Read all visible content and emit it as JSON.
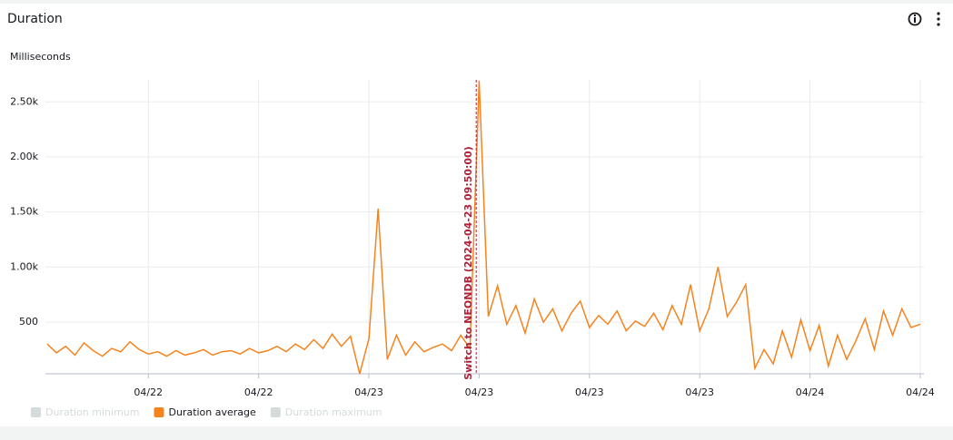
{
  "header": {
    "title": "Duration"
  },
  "chart_data": {
    "type": "line",
    "y_label": "Milliseconds",
    "x": [
      6.5,
      7,
      7.5,
      8,
      8.5,
      9,
      9.5,
      10,
      10.5,
      11,
      11.5,
      12,
      12.5,
      13,
      13.5,
      14,
      14.5,
      15,
      15.5,
      16,
      16.5,
      17,
      17.5,
      18,
      18.5,
      19,
      19.5,
      20,
      20.5,
      21,
      21.5,
      22,
      22.5,
      23,
      23.5,
      24,
      24.5,
      25,
      25.5,
      26,
      26.5,
      27,
      27.5,
      28,
      28.5,
      29,
      29.5,
      30,
      30.5,
      31,
      31.5,
      32,
      32.5,
      33,
      33.5,
      34,
      34.5,
      35,
      35.5,
      36,
      36.5,
      37,
      37.5,
      38,
      38.5,
      39,
      39.5,
      40,
      40.5,
      41,
      41.5,
      42,
      42.5,
      43,
      43.5,
      44,
      44.5,
      45,
      45.5,
      46,
      46.5,
      47,
      47.5,
      48,
      48.5,
      49,
      49.5,
      50,
      50.5,
      51,
      51.5,
      52,
      52.5,
      53,
      53.5,
      54
    ],
    "series": [
      {
        "name": "Duration average",
        "color": "#f5841f",
        "values": [
          300,
          220,
          280,
          200,
          310,
          240,
          190,
          260,
          230,
          320,
          250,
          210,
          230,
          190,
          240,
          200,
          220,
          250,
          200,
          230,
          240,
          210,
          260,
          220,
          240,
          280,
          230,
          300,
          250,
          340,
          260,
          390,
          280,
          370,
          30,
          350,
          1530,
          160,
          380,
          200,
          320,
          230,
          270,
          300,
          240,
          380,
          260,
          2690,
          550,
          830,
          480,
          650,
          400,
          710,
          500,
          620,
          420,
          580,
          690,
          450,
          560,
          480,
          600,
          420,
          510,
          460,
          580,
          430,
          650,
          480,
          840,
          420,
          620,
          1000,
          550,
          680,
          840,
          80,
          250,
          120,
          420,
          180,
          520,
          240,
          470,
          100,
          380,
          160,
          330,
          530,
          250,
          600,
          380,
          620,
          450,
          480
        ]
      }
    ],
    "legend": [
      {
        "name": "Duration minimum",
        "active": false,
        "color": "#d5dbdb"
      },
      {
        "name": "Duration average",
        "active": true,
        "color": "#f5841f"
      },
      {
        "name": "Duration maximum",
        "active": false,
        "color": "#d5dbdb"
      }
    ],
    "xlim": [
      6.4,
      54.2
    ],
    "xticks": [
      {
        "value": 12,
        "label": "04/22"
      },
      {
        "value": 18,
        "label": "04/22"
      },
      {
        "value": 24,
        "label": "04/23"
      },
      {
        "value": 30,
        "label": "04/23"
      },
      {
        "value": 36,
        "label": "04/23"
      },
      {
        "value": 42,
        "label": "04/23"
      },
      {
        "value": 48,
        "label": "04/24"
      },
      {
        "value": 54,
        "label": "04/24"
      }
    ],
    "ylim": [
      30,
      2700
    ],
    "yticks": [
      500,
      {
        "value": 1000,
        "label": "1.00k"
      },
      {
        "value": 1500,
        "label": "1.50k"
      },
      {
        "value": 2000,
        "label": "2.00k"
      },
      {
        "value": 2500,
        "label": "2.50k"
      }
    ],
    "grid": true,
    "annotation": {
      "x": 29.84,
      "label": "Switch to NEONDB (2024-04-23 09:50:00)",
      "color": "#b0213a"
    }
  }
}
